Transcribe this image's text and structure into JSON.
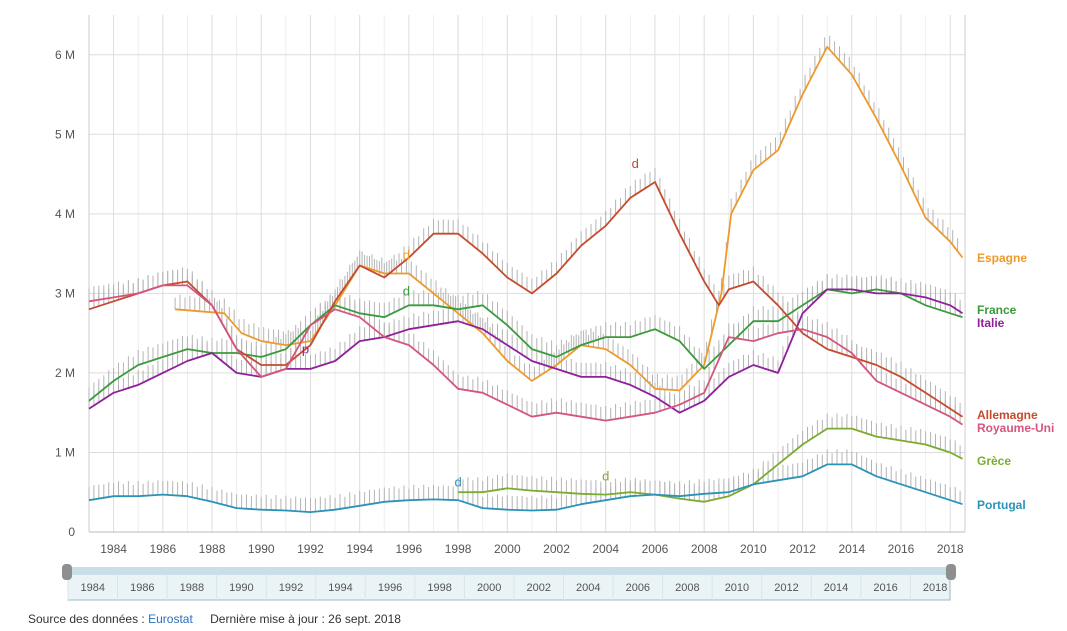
{
  "colors": {
    "Espagne": "#ee9a2b",
    "France": "#3a9a3c",
    "Italie": "#8f1f9a",
    "Allemagne": "#c64a2e",
    "Royaume-Uni": "#d5557e",
    "Grèce": "#7bab2f",
    "Portugal": "#2b93b8",
    "band": "#b4b4b4",
    "grid": "#dddddd",
    "navigator_fill": "#eaf4f7",
    "navigator_border": "#9ab9c7",
    "handle": "#8f8f8f",
    "link": "#2a6ebb"
  },
  "chart_data": {
    "type": "line",
    "title": "",
    "xlabel": "",
    "ylabel": "",
    "xlim": [
      1983.0,
      2018.6
    ],
    "ylim": [
      0,
      6.5
    ],
    "x_ticks": [
      1984,
      1986,
      1988,
      1990,
      1992,
      1994,
      1996,
      1998,
      2000,
      2002,
      2004,
      2006,
      2008,
      2010,
      2012,
      2014,
      2016,
      2018
    ],
    "y_ticks": [
      {
        "value": 0,
        "label": "0"
      },
      {
        "value": 1,
        "label": "1 M"
      },
      {
        "value": 2,
        "label": "2 M"
      },
      {
        "value": 3,
        "label": "3 M"
      },
      {
        "value": 4,
        "label": "4 M"
      },
      {
        "value": 5,
        "label": "5 M"
      },
      {
        "value": 6,
        "label": "6 M"
      }
    ],
    "grid": true,
    "legend_position": "right, at line ends",
    "series": [
      {
        "name": "Espagne",
        "values": [
          [
            1986.5,
            2.8
          ],
          [
            1988.5,
            2.75
          ],
          [
            1989.2,
            2.5
          ],
          [
            1990,
            2.4
          ],
          [
            1991,
            2.35
          ],
          [
            1992,
            2.4
          ],
          [
            1993,
            2.85
          ],
          [
            1994,
            3.35
          ],
          [
            1995,
            3.25
          ],
          [
            1996,
            3.25
          ],
          [
            1997,
            3.0
          ],
          [
            1998,
            2.75
          ],
          [
            1999,
            2.5
          ],
          [
            2000,
            2.15
          ],
          [
            2001,
            1.9
          ],
          [
            2002,
            2.1
          ],
          [
            2003,
            2.35
          ],
          [
            2004,
            2.3
          ],
          [
            2005,
            2.1
          ],
          [
            2006,
            1.8
          ],
          [
            2007,
            1.78
          ],
          [
            2008,
            2.1
          ],
          [
            2008.7,
            3.0
          ],
          [
            2009.1,
            4.0
          ],
          [
            2010,
            4.55
          ],
          [
            2011,
            4.8
          ],
          [
            2012,
            5.5
          ],
          [
            2013,
            6.1
          ],
          [
            2014,
            5.75
          ],
          [
            2015,
            5.2
          ],
          [
            2016,
            4.6
          ],
          [
            2017,
            3.95
          ],
          [
            2018,
            3.65
          ],
          [
            2018.5,
            3.45
          ]
        ]
      },
      {
        "name": "France",
        "values": [
          [
            1983,
            1.65
          ],
          [
            1984,
            1.9
          ],
          [
            1985,
            2.1
          ],
          [
            1986,
            2.2
          ],
          [
            1987,
            2.3
          ],
          [
            1988,
            2.25
          ],
          [
            1989,
            2.25
          ],
          [
            1990,
            2.2
          ],
          [
            1991,
            2.3
          ],
          [
            1992,
            2.6
          ],
          [
            1993,
            2.85
          ],
          [
            1994,
            2.75
          ],
          [
            1995,
            2.7
          ],
          [
            1996,
            2.85
          ],
          [
            1997,
            2.85
          ],
          [
            1998,
            2.8
          ],
          [
            1999,
            2.85
          ],
          [
            2000,
            2.6
          ],
          [
            2001,
            2.3
          ],
          [
            2002,
            2.2
          ],
          [
            2003,
            2.35
          ],
          [
            2004,
            2.45
          ],
          [
            2005,
            2.45
          ],
          [
            2006,
            2.55
          ],
          [
            2007,
            2.4
          ],
          [
            2008,
            2.05
          ],
          [
            2009,
            2.35
          ],
          [
            2010,
            2.65
          ],
          [
            2011,
            2.65
          ],
          [
            2012,
            2.85
          ],
          [
            2013,
            3.05
          ],
          [
            2014,
            3.0
          ],
          [
            2015,
            3.05
          ],
          [
            2016,
            3.0
          ],
          [
            2017,
            2.85
          ],
          [
            2018,
            2.75
          ],
          [
            2018.5,
            2.7
          ]
        ]
      },
      {
        "name": "Italie",
        "values": [
          [
            1983,
            1.55
          ],
          [
            1984,
            1.75
          ],
          [
            1985,
            1.85
          ],
          [
            1986,
            2.0
          ],
          [
            1987,
            2.15
          ],
          [
            1988,
            2.25
          ],
          [
            1989,
            2.0
          ],
          [
            1990,
            1.95
          ],
          [
            1991,
            2.05
          ],
          [
            1992,
            2.05
          ],
          [
            1993,
            2.15
          ],
          [
            1994,
            2.4
          ],
          [
            1995,
            2.45
          ],
          [
            1996,
            2.55
          ],
          [
            1997,
            2.6
          ],
          [
            1998,
            2.65
          ],
          [
            1999,
            2.55
          ],
          [
            2000,
            2.35
          ],
          [
            2001,
            2.15
          ],
          [
            2002,
            2.05
          ],
          [
            2003,
            1.95
          ],
          [
            2004,
            1.95
          ],
          [
            2005,
            1.85
          ],
          [
            2006,
            1.7
          ],
          [
            2007,
            1.5
          ],
          [
            2008,
            1.65
          ],
          [
            2009,
            1.95
          ],
          [
            2010,
            2.1
          ],
          [
            2011,
            2.0
          ],
          [
            2012,
            2.75
          ],
          [
            2013,
            3.05
          ],
          [
            2014,
            3.05
          ],
          [
            2015,
            3.0
          ],
          [
            2016,
            3.0
          ],
          [
            2017,
            2.95
          ],
          [
            2018,
            2.85
          ],
          [
            2018.5,
            2.75
          ]
        ]
      },
      {
        "name": "Allemagne",
        "values": [
          [
            1983,
            2.8
          ],
          [
            1984,
            2.9
          ],
          [
            1985,
            3.0
          ],
          [
            1986,
            3.1
          ],
          [
            1987,
            3.15
          ],
          [
            1988,
            2.85
          ],
          [
            1989,
            2.3
          ],
          [
            1990,
            2.1
          ],
          [
            1991,
            2.1
          ],
          [
            1992,
            2.35
          ],
          [
            1993,
            2.9
          ],
          [
            1994,
            3.35
          ],
          [
            1995,
            3.2
          ],
          [
            1996,
            3.45
          ],
          [
            1997,
            3.75
          ],
          [
            1998,
            3.75
          ],
          [
            1999,
            3.5
          ],
          [
            2000,
            3.2
          ],
          [
            2001,
            3.0
          ],
          [
            2002,
            3.25
          ],
          [
            2003,
            3.6
          ],
          [
            2004,
            3.85
          ],
          [
            2005,
            4.2
          ],
          [
            2006,
            4.4
          ],
          [
            2007,
            3.75
          ],
          [
            2008,
            3.15
          ],
          [
            2008.6,
            2.85
          ],
          [
            2009,
            3.05
          ],
          [
            2010,
            3.15
          ],
          [
            2011,
            2.85
          ],
          [
            2012,
            2.5
          ],
          [
            2013,
            2.3
          ],
          [
            2014,
            2.2
          ],
          [
            2015,
            2.1
          ],
          [
            2016,
            1.95
          ],
          [
            2017,
            1.75
          ],
          [
            2018,
            1.55
          ],
          [
            2018.5,
            1.45
          ]
        ]
      },
      {
        "name": "Royaume-Uni",
        "values": [
          [
            1983,
            2.9
          ],
          [
            1984,
            2.95
          ],
          [
            1985,
            3.0
          ],
          [
            1986,
            3.1
          ],
          [
            1987,
            3.1
          ],
          [
            1988,
            2.85
          ],
          [
            1989,
            2.3
          ],
          [
            1990,
            1.95
          ],
          [
            1991,
            2.05
          ],
          [
            1992,
            2.6
          ],
          [
            1993,
            2.8
          ],
          [
            1994,
            2.7
          ],
          [
            1995,
            2.45
          ],
          [
            1996,
            2.35
          ],
          [
            1997,
            2.1
          ],
          [
            1998,
            1.8
          ],
          [
            1999,
            1.75
          ],
          [
            2000,
            1.6
          ],
          [
            2001,
            1.45
          ],
          [
            2002,
            1.5
          ],
          [
            2003,
            1.45
          ],
          [
            2004,
            1.4
          ],
          [
            2005,
            1.45
          ],
          [
            2006,
            1.5
          ],
          [
            2007,
            1.6
          ],
          [
            2008,
            1.75
          ],
          [
            2009,
            2.45
          ],
          [
            2010,
            2.4
          ],
          [
            2011,
            2.5
          ],
          [
            2012,
            2.55
          ],
          [
            2013,
            2.45
          ],
          [
            2014,
            2.25
          ],
          [
            2015,
            1.9
          ],
          [
            2016,
            1.75
          ],
          [
            2017,
            1.6
          ],
          [
            2018,
            1.45
          ],
          [
            2018.5,
            1.35
          ]
        ]
      },
      {
        "name": "Grèce",
        "values": [
          [
            1998,
            0.5
          ],
          [
            1999,
            0.5
          ],
          [
            2000,
            0.55
          ],
          [
            2001,
            0.52
          ],
          [
            2002,
            0.5
          ],
          [
            2003,
            0.48
          ],
          [
            2004,
            0.47
          ],
          [
            2005,
            0.5
          ],
          [
            2006,
            0.47
          ],
          [
            2007,
            0.42
          ],
          [
            2008,
            0.38
          ],
          [
            2009,
            0.45
          ],
          [
            2010,
            0.6
          ],
          [
            2011,
            0.85
          ],
          [
            2012,
            1.1
          ],
          [
            2013,
            1.3
          ],
          [
            2014,
            1.3
          ],
          [
            2015,
            1.2
          ],
          [
            2016,
            1.15
          ],
          [
            2017,
            1.1
          ],
          [
            2018,
            1.0
          ],
          [
            2018.5,
            0.92
          ]
        ]
      },
      {
        "name": "Portugal",
        "values": [
          [
            1983,
            0.4
          ],
          [
            1984,
            0.45
          ],
          [
            1985,
            0.45
          ],
          [
            1986,
            0.47
          ],
          [
            1987,
            0.45
          ],
          [
            1988,
            0.38
          ],
          [
            1989,
            0.3
          ],
          [
            1990,
            0.28
          ],
          [
            1991,
            0.27
          ],
          [
            1992,
            0.25
          ],
          [
            1993,
            0.28
          ],
          [
            1994,
            0.33
          ],
          [
            1995,
            0.38
          ],
          [
            1996,
            0.4
          ],
          [
            1997,
            0.41
          ],
          [
            1998,
            0.4
          ],
          [
            1999,
            0.3
          ],
          [
            2000,
            0.28
          ],
          [
            2001,
            0.27
          ],
          [
            2002,
            0.28
          ],
          [
            2003,
            0.35
          ],
          [
            2004,
            0.4
          ],
          [
            2005,
            0.45
          ],
          [
            2006,
            0.47
          ],
          [
            2007,
            0.45
          ],
          [
            2008,
            0.48
          ],
          [
            2009,
            0.5
          ],
          [
            2010,
            0.6
          ],
          [
            2011,
            0.65
          ],
          [
            2012,
            0.7
          ],
          [
            2013,
            0.85
          ],
          [
            2014,
            0.85
          ],
          [
            2015,
            0.7
          ],
          [
            2016,
            0.6
          ],
          [
            2017,
            0.5
          ],
          [
            2018,
            0.4
          ],
          [
            2018.5,
            0.35
          ]
        ]
      }
    ],
    "annotations": [
      {
        "text": "d",
        "x": 2005.2,
        "y": 4.55,
        "series": "Allemagne"
      },
      {
        "text": "d",
        "x": 1995.9,
        "y": 3.4,
        "series": "Espagne"
      },
      {
        "text": "d",
        "x": 1995.9,
        "y": 2.95,
        "series": "France"
      },
      {
        "text": "d",
        "x": 1998.0,
        "y": 0.55,
        "series": "Portugal"
      },
      {
        "text": "d",
        "x": 2004.0,
        "y": 0.62,
        "series": "Grèce"
      },
      {
        "text": "p",
        "x": 1991.8,
        "y": 2.22,
        "series": "Italie"
      }
    ]
  },
  "navigator": {
    "tick_labels": [
      "1984",
      "1986",
      "1988",
      "1990",
      "1992",
      "1994",
      "1996",
      "1998",
      "2000",
      "2002",
      "2004",
      "2006",
      "2008",
      "2010",
      "2012",
      "2014",
      "2016",
      "2018"
    ]
  },
  "source": {
    "label": "Source des données :",
    "link": "Eurostat",
    "update": "Dernière mise à jour : 26 sept. 2018"
  }
}
